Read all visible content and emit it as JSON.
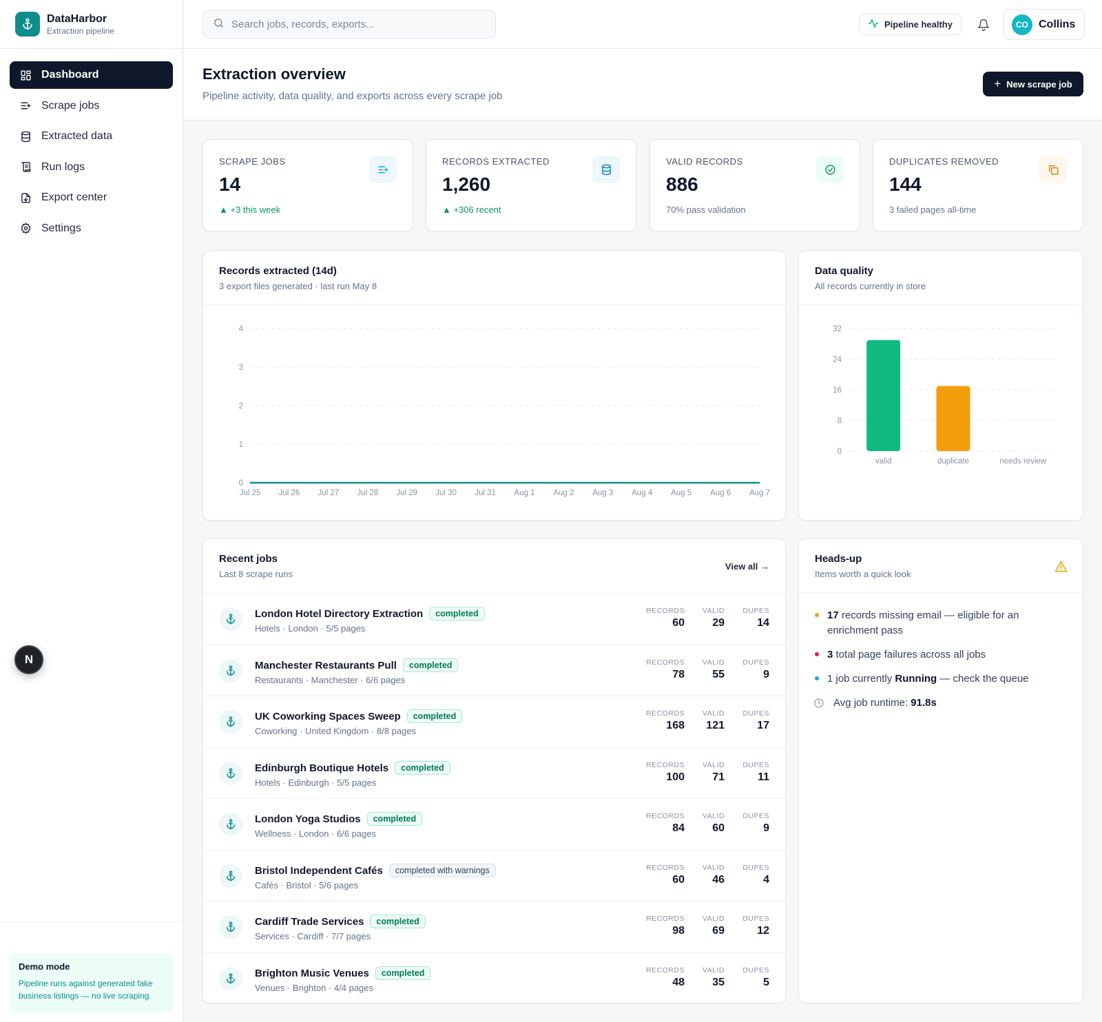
{
  "brand": {
    "name": "DataHarbor",
    "subtitle": "Extraction pipeline"
  },
  "nav": [
    {
      "label": "Dashboard",
      "icon": "dashboard-icon",
      "active": true
    },
    {
      "label": "Scrape jobs",
      "icon": "list-plus-icon"
    },
    {
      "label": "Extracted data",
      "icon": "database-icon"
    },
    {
      "label": "Run logs",
      "icon": "logs-icon"
    },
    {
      "label": "Export center",
      "icon": "file-download-icon"
    },
    {
      "label": "Settings",
      "icon": "gear-icon"
    }
  ],
  "demo": {
    "title": "Demo mode",
    "text": "Pipeline runs against generated fake business listings — no live scraping."
  },
  "fab": {
    "letter": "N"
  },
  "topbar": {
    "search_placeholder": "Search jobs, records, exports...",
    "health_label": "Pipeline healthy",
    "user": {
      "initials": "CO",
      "name": "Collins"
    }
  },
  "header": {
    "title": "Extraction overview",
    "subtitle": "Pipeline activity, data quality, and exports across every scrape job",
    "new_button": "New scrape job"
  },
  "stats": [
    {
      "label": "SCRAPE JOBS",
      "value": "14",
      "note": "▲ +3 this week",
      "trend": "up",
      "icon": "list-plus-icon",
      "color": "#0ea5e9",
      "bg": "#eef8fc"
    },
    {
      "label": "RECORDS EXTRACTED",
      "value": "1,260",
      "note": "▲ +306 recent",
      "trend": "up",
      "icon": "database-icon",
      "color": "#0284c7",
      "bg": "#eef8fc"
    },
    {
      "label": "VALID RECORDS",
      "value": "886",
      "note": "70% pass validation",
      "trend": "neutral",
      "icon": "check-circle-icon",
      "color": "#059669",
      "bg": "#ecfdf5"
    },
    {
      "label": "DUPLICATES REMOVED",
      "value": "144",
      "note": "3 failed pages all-time",
      "trend": "neutral",
      "icon": "copy-icon",
      "color": "#d97706",
      "bg": "#fef8ec"
    }
  ],
  "records_chart": {
    "title": "Records extracted (14d)",
    "subtitle": "3 export files generated · last run May 8",
    "chart_data": {
      "type": "line",
      "x": [
        "Jul 25",
        "Jul 26",
        "Jul 27",
        "Jul 28",
        "Jul 29",
        "Jul 30",
        "Jul 31",
        "Aug 1",
        "Aug 2",
        "Aug 3",
        "Aug 4",
        "Aug 5",
        "Aug 6",
        "Aug 7"
      ],
      "series": [
        {
          "values": [
            0,
            0,
            0,
            0,
            0,
            0,
            0,
            0,
            0,
            0,
            0,
            0,
            0,
            0
          ],
          "color": "#0f8c8c"
        }
      ],
      "yticks": [
        0,
        1,
        2,
        3,
        4
      ],
      "ylim": [
        0,
        4
      ],
      "grid": true
    }
  },
  "quality_chart": {
    "title": "Data quality",
    "subtitle": "All records currently in store",
    "chart_data": {
      "type": "bar",
      "categories": [
        "valid",
        "duplicate",
        "needs review"
      ],
      "values": [
        29,
        17,
        0
      ],
      "colors": [
        "#10b981",
        "#f59e0b",
        "#94a3b8"
      ],
      "yticks": [
        0,
        8,
        16,
        24,
        32
      ],
      "ylim": [
        0,
        32
      ],
      "grid": true
    }
  },
  "jobs": {
    "title": "Recent jobs",
    "subtitle": "Last 8 scrape runs",
    "view_all": "View all →",
    "metric_labels": {
      "records": "RECORDS",
      "valid": "VALID",
      "dupes": "DUPES"
    },
    "rows": [
      {
        "name": "London Hotel Directory Extraction",
        "status": "completed",
        "meta": "Hotels · London · 5/5 pages",
        "records": "60",
        "valid": "29",
        "dupes": "14"
      },
      {
        "name": "Manchester Restaurants Pull",
        "status": "completed",
        "meta": "Restaurants · Manchester · 6/6 pages",
        "records": "78",
        "valid": "55",
        "dupes": "9"
      },
      {
        "name": "UK Coworking Spaces Sweep",
        "status": "completed",
        "meta": "Coworking · United Kingdom · 8/8 pages",
        "records": "168",
        "valid": "121",
        "dupes": "17"
      },
      {
        "name": "Edinburgh Boutique Hotels",
        "status": "completed",
        "meta": "Hotels · Edinburgh · 5/5 pages",
        "records": "100",
        "valid": "71",
        "dupes": "11"
      },
      {
        "name": "London Yoga Studios",
        "status": "completed",
        "meta": "Wellness · London · 6/6 pages",
        "records": "84",
        "valid": "60",
        "dupes": "9"
      },
      {
        "name": "Bristol Independent Cafés",
        "status": "completed with warnings",
        "meta": "Cafés · Bristol · 5/6 pages",
        "records": "60",
        "valid": "46",
        "dupes": "4"
      },
      {
        "name": "Cardiff Trade Services",
        "status": "completed",
        "meta": "Services · Cardiff · 7/7 pages",
        "records": "98",
        "valid": "69",
        "dupes": "12"
      },
      {
        "name": "Brighton Music Venues",
        "status": "completed",
        "meta": "Venues · Brighton · 4/4 pages",
        "records": "48",
        "valid": "35",
        "dupes": "5"
      }
    ]
  },
  "headsup": {
    "title": "Heads-up",
    "subtitle": "Items worth a quick look",
    "items": [
      {
        "bold": "17",
        "text": " records missing email — eligible for an enrichment pass",
        "dot": "#f59e0b"
      },
      {
        "bold": "3",
        "text": " total page failures across all jobs",
        "dot": "#e11d48"
      },
      {
        "pre": "1 job currently ",
        "bold": "Running",
        "text": " — check the queue",
        "dot": "#0ea5e9"
      }
    ],
    "runtime_label": "Avg job runtime: ",
    "runtime_value": "91.8s"
  }
}
